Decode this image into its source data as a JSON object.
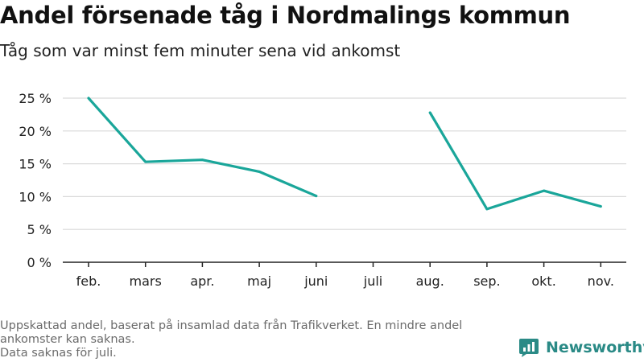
{
  "title": "Andel försenade tåg i Nordmalings kommun",
  "subtitle": "Tåg som var minst fem minuter sena vid ankomst",
  "footnote": {
    "line1": "Uppskattad andel, baserat på insamlad data från Trafikverket. En mindre andel",
    "line2": "ankomster kan saknas.",
    "line3": "Data saknas för juli."
  },
  "brand": {
    "name": "Newsworthy",
    "icon": "newsworthy-logo-icon"
  },
  "colors": {
    "line": "#1aa69a",
    "grid": "#d9d9d9",
    "axis": "#222222",
    "brand": "#2a8a86"
  },
  "chart_data": {
    "type": "line",
    "title": "Andel försenade tåg i Nordmalings kommun",
    "subtitle": "Tåg som var minst fem minuter sena vid ankomst",
    "categories": [
      "feb.",
      "mars",
      "apr.",
      "maj",
      "juni",
      "juli",
      "aug.",
      "sep.",
      "okt.",
      "nov."
    ],
    "series": [
      {
        "values": [
          25.0,
          15.3,
          15.6,
          13.8,
          10.1,
          null,
          22.8,
          8.1,
          10.9,
          8.5
        ]
      }
    ],
    "ylim": [
      0,
      25
    ],
    "yticks": [
      0,
      5,
      10,
      15,
      20,
      25
    ],
    "ytick_labels": [
      "0 %",
      "5 %",
      "10 %",
      "15 %",
      "20 %",
      "25 %"
    ],
    "xlabel": "",
    "ylabel": "",
    "grid": true,
    "legend": "none"
  }
}
